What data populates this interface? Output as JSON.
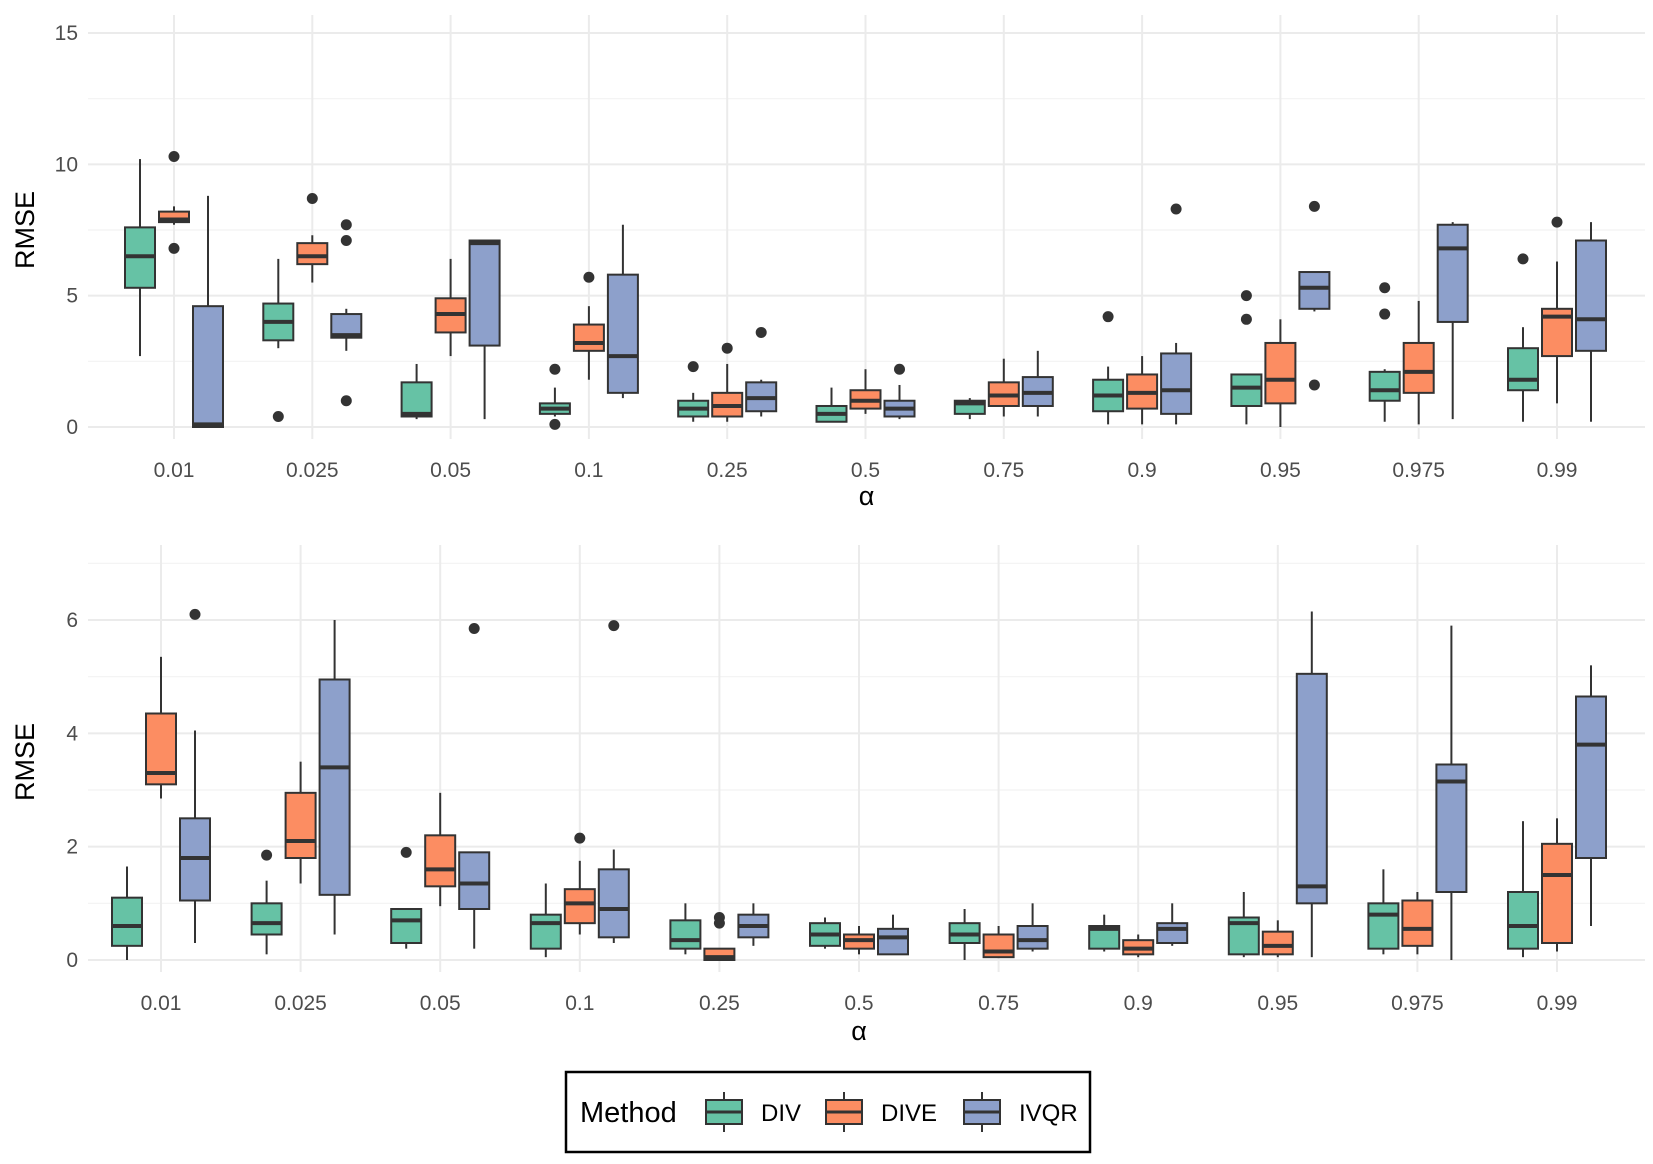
{
  "legend": {
    "title": "Method",
    "position": "bottom",
    "entries": [
      {
        "name": "DIV",
        "color": "#66C2A5"
      },
      {
        "name": "DIVE",
        "color": "#FC8D62"
      },
      {
        "name": "IVQR",
        "color": "#8DA0CB"
      }
    ]
  },
  "chart_data": [
    {
      "type": "boxplot",
      "xlabel": "α",
      "ylabel": "RMSE",
      "ylim": [
        0,
        15
      ],
      "yticks": [
        0,
        5,
        10,
        15
      ],
      "grid": true,
      "categories": [
        "0.01",
        "0.025",
        "0.05",
        "0.1",
        "0.25",
        "0.5",
        "0.75",
        "0.9",
        "0.95",
        "0.975",
        "0.99"
      ],
      "series": [
        {
          "name": "DIV",
          "boxes": [
            {
              "min": 2.7,
              "q1": 5.3,
              "median": 6.5,
              "q3": 7.6,
              "max": 10.2,
              "outliers": []
            },
            {
              "min": 3.0,
              "q1": 3.3,
              "median": 4.0,
              "q3": 4.7,
              "max": 6.4,
              "outliers": [
                0.4
              ]
            },
            {
              "min": 0.3,
              "q1": 0.4,
              "median": 0.5,
              "q3": 1.7,
              "max": 2.4,
              "outliers": []
            },
            {
              "min": 0.4,
              "q1": 0.5,
              "median": 0.7,
              "q3": 0.9,
              "max": 1.5,
              "outliers": [
                2.2,
                0.1
              ]
            },
            {
              "min": 0.2,
              "q1": 0.4,
              "median": 0.7,
              "q3": 1.0,
              "max": 1.3,
              "outliers": [
                2.3
              ]
            },
            {
              "min": 0.2,
              "q1": 0.2,
              "median": 0.5,
              "q3": 0.8,
              "max": 1.5,
              "outliers": []
            },
            {
              "min": 0.3,
              "q1": 0.5,
              "median": 0.9,
              "q3": 1.0,
              "max": 1.1,
              "outliers": []
            },
            {
              "min": 0.1,
              "q1": 0.6,
              "median": 1.2,
              "q3": 1.8,
              "max": 2.3,
              "outliers": [
                4.2
              ]
            },
            {
              "min": 0.1,
              "q1": 0.8,
              "median": 1.5,
              "q3": 2.0,
              "max": 2.0,
              "outliers": [
                5.0,
                4.1
              ]
            },
            {
              "min": 0.2,
              "q1": 1.0,
              "median": 1.4,
              "q3": 2.1,
              "max": 2.2,
              "outliers": [
                5.3,
                4.3
              ]
            },
            {
              "min": 0.2,
              "q1": 1.4,
              "median": 1.8,
              "q3": 3.0,
              "max": 3.8,
              "outliers": [
                6.4
              ]
            }
          ]
        },
        {
          "name": "DIVE",
          "boxes": [
            {
              "min": 7.7,
              "q1": 7.8,
              "median": 7.9,
              "q3": 8.2,
              "max": 8.4,
              "outliers": [
                10.3,
                6.8
              ]
            },
            {
              "min": 5.5,
              "q1": 6.2,
              "median": 6.5,
              "q3": 7.0,
              "max": 7.3,
              "outliers": [
                8.7
              ]
            },
            {
              "min": 2.7,
              "q1": 3.6,
              "median": 4.3,
              "q3": 4.9,
              "max": 6.4,
              "outliers": []
            },
            {
              "min": 1.8,
              "q1": 2.9,
              "median": 3.2,
              "q3": 3.9,
              "max": 4.6,
              "outliers": [
                5.7
              ]
            },
            {
              "min": 0.2,
              "q1": 0.4,
              "median": 0.8,
              "q3": 1.3,
              "max": 2.4,
              "outliers": [
                3.0
              ]
            },
            {
              "min": 0.5,
              "q1": 0.7,
              "median": 1.0,
              "q3": 1.4,
              "max": 2.2,
              "outliers": []
            },
            {
              "min": 0.4,
              "q1": 0.8,
              "median": 1.2,
              "q3": 1.7,
              "max": 2.6,
              "outliers": []
            },
            {
              "min": 0.1,
              "q1": 0.7,
              "median": 1.3,
              "q3": 2.0,
              "max": 2.7,
              "outliers": []
            },
            {
              "min": 0.0,
              "q1": 0.9,
              "median": 1.8,
              "q3": 3.2,
              "max": 4.1,
              "outliers": []
            },
            {
              "min": 0.1,
              "q1": 1.3,
              "median": 2.1,
              "q3": 3.2,
              "max": 4.8,
              "outliers": []
            },
            {
              "min": 0.9,
              "q1": 2.7,
              "median": 4.2,
              "q3": 4.5,
              "max": 6.3,
              "outliers": [
                7.8
              ]
            }
          ]
        },
        {
          "name": "IVQR",
          "boxes": [
            {
              "min": 0.0,
              "q1": 0.0,
              "median": 0.1,
              "q3": 4.6,
              "max": 8.8,
              "outliers": []
            },
            {
              "min": 2.9,
              "q1": 3.4,
              "median": 3.5,
              "q3": 4.3,
              "max": 4.5,
              "outliers": [
                7.7,
                7.1,
                1.0
              ]
            },
            {
              "min": 0.3,
              "q1": 3.1,
              "median": 7.0,
              "q3": 7.1,
              "max": 7.1,
              "outliers": []
            },
            {
              "min": 1.1,
              "q1": 1.3,
              "median": 2.7,
              "q3": 5.8,
              "max": 7.7,
              "outliers": []
            },
            {
              "min": 0.4,
              "q1": 0.6,
              "median": 1.1,
              "q3": 1.7,
              "max": 1.8,
              "outliers": [
                3.6
              ]
            },
            {
              "min": 0.3,
              "q1": 0.4,
              "median": 0.7,
              "q3": 1.0,
              "max": 1.6,
              "outliers": [
                2.2
              ]
            },
            {
              "min": 0.4,
              "q1": 0.8,
              "median": 1.3,
              "q3": 1.9,
              "max": 2.9,
              "outliers": []
            },
            {
              "min": 0.1,
              "q1": 0.5,
              "median": 1.4,
              "q3": 2.8,
              "max": 3.2,
              "outliers": [
                8.3
              ]
            },
            {
              "min": 4.4,
              "q1": 4.5,
              "median": 5.3,
              "q3": 5.9,
              "max": 5.9,
              "outliers": [
                8.4,
                1.6
              ]
            },
            {
              "min": 0.3,
              "q1": 4.0,
              "median": 6.8,
              "q3": 7.7,
              "max": 7.8,
              "outliers": []
            },
            {
              "min": 0.2,
              "q1": 2.9,
              "median": 4.1,
              "q3": 7.1,
              "max": 7.8,
              "outliers": []
            }
          ]
        }
      ]
    },
    {
      "type": "boxplot",
      "xlabel": "α",
      "ylabel": "RMSE",
      "ylim": [
        0,
        7
      ],
      "yticks": [
        0,
        2,
        4,
        6
      ],
      "grid": true,
      "categories": [
        "0.01",
        "0.025",
        "0.05",
        "0.1",
        "0.25",
        "0.5",
        "0.75",
        "0.9",
        "0.95",
        "0.975",
        "0.99"
      ],
      "series": [
        {
          "name": "DIV",
          "boxes": [
            {
              "min": 0.0,
              "q1": 0.25,
              "median": 0.6,
              "q3": 1.1,
              "max": 1.65,
              "outliers": []
            },
            {
              "min": 0.1,
              "q1": 0.45,
              "median": 0.65,
              "q3": 1.0,
              "max": 1.4,
              "outliers": [
                1.85
              ]
            },
            {
              "min": 0.2,
              "q1": 0.3,
              "median": 0.7,
              "q3": 0.9,
              "max": 0.9,
              "outliers": [
                1.9
              ]
            },
            {
              "min": 0.05,
              "q1": 0.2,
              "median": 0.65,
              "q3": 0.8,
              "max": 1.35,
              "outliers": []
            },
            {
              "min": 0.1,
              "q1": 0.2,
              "median": 0.35,
              "q3": 0.7,
              "max": 1.0,
              "outliers": []
            },
            {
              "min": 0.2,
              "q1": 0.25,
              "median": 0.45,
              "q3": 0.65,
              "max": 0.75,
              "outliers": []
            },
            {
              "min": 0.0,
              "q1": 0.3,
              "median": 0.45,
              "q3": 0.65,
              "max": 0.9,
              "outliers": []
            },
            {
              "min": 0.15,
              "q1": 0.2,
              "median": 0.55,
              "q3": 0.6,
              "max": 0.8,
              "outliers": []
            },
            {
              "min": 0.05,
              "q1": 0.1,
              "median": 0.65,
              "q3": 0.75,
              "max": 1.2,
              "outliers": []
            },
            {
              "min": 0.1,
              "q1": 0.2,
              "median": 0.8,
              "q3": 1.0,
              "max": 1.6,
              "outliers": []
            },
            {
              "min": 0.05,
              "q1": 0.2,
              "median": 0.6,
              "q3": 1.2,
              "max": 2.45,
              "outliers": []
            }
          ]
        },
        {
          "name": "DIVE",
          "boxes": [
            {
              "min": 2.85,
              "q1": 3.1,
              "median": 3.3,
              "q3": 4.35,
              "max": 5.35,
              "outliers": []
            },
            {
              "min": 1.35,
              "q1": 1.8,
              "median": 2.1,
              "q3": 2.95,
              "max": 3.5,
              "outliers": []
            },
            {
              "min": 0.95,
              "q1": 1.3,
              "median": 1.6,
              "q3": 2.2,
              "max": 2.95,
              "outliers": []
            },
            {
              "min": 0.45,
              "q1": 0.65,
              "median": 1.0,
              "q3": 1.25,
              "max": 1.75,
              "outliers": [
                2.15
              ]
            },
            {
              "min": 0.0,
              "q1": 0.0,
              "median": 0.05,
              "q3": 0.2,
              "max": 0.2,
              "outliers": [
                0.75,
                0.65
              ]
            },
            {
              "min": 0.1,
              "q1": 0.2,
              "median": 0.35,
              "q3": 0.45,
              "max": 0.6,
              "outliers": []
            },
            {
              "min": 0.05,
              "q1": 0.05,
              "median": 0.15,
              "q3": 0.45,
              "max": 0.6,
              "outliers": []
            },
            {
              "min": 0.05,
              "q1": 0.1,
              "median": 0.2,
              "q3": 0.35,
              "max": 0.45,
              "outliers": []
            },
            {
              "min": 0.05,
              "q1": 0.1,
              "median": 0.25,
              "q3": 0.5,
              "max": 0.7,
              "outliers": []
            },
            {
              "min": 0.1,
              "q1": 0.25,
              "median": 0.55,
              "q3": 1.05,
              "max": 1.2,
              "outliers": []
            },
            {
              "min": 0.15,
              "q1": 0.3,
              "median": 1.5,
              "q3": 2.05,
              "max": 2.5,
              "outliers": []
            }
          ]
        },
        {
          "name": "IVQR",
          "boxes": [
            {
              "min": 0.3,
              "q1": 1.05,
              "median": 1.8,
              "q3": 2.5,
              "max": 4.05,
              "outliers": [
                6.1
              ]
            },
            {
              "min": 0.45,
              "q1": 1.15,
              "median": 3.4,
              "q3": 4.95,
              "max": 6.0,
              "outliers": []
            },
            {
              "min": 0.2,
              "q1": 0.9,
              "median": 1.35,
              "q3": 1.9,
              "max": 1.9,
              "outliers": [
                5.85
              ]
            },
            {
              "min": 0.3,
              "q1": 0.4,
              "median": 0.9,
              "q3": 1.6,
              "max": 1.95,
              "outliers": [
                5.9
              ]
            },
            {
              "min": 0.25,
              "q1": 0.4,
              "median": 0.6,
              "q3": 0.8,
              "max": 1.0,
              "outliers": []
            },
            {
              "min": 0.1,
              "q1": 0.1,
              "median": 0.4,
              "q3": 0.55,
              "max": 0.8,
              "outliers": []
            },
            {
              "min": 0.15,
              "q1": 0.2,
              "median": 0.35,
              "q3": 0.6,
              "max": 1.0,
              "outliers": []
            },
            {
              "min": 0.25,
              "q1": 0.3,
              "median": 0.55,
              "q3": 0.65,
              "max": 1.0,
              "outliers": []
            },
            {
              "min": 0.05,
              "q1": 1.0,
              "median": 1.3,
              "q3": 5.05,
              "max": 6.15,
              "outliers": []
            },
            {
              "min": 0.0,
              "q1": 1.2,
              "median": 3.15,
              "q3": 3.45,
              "max": 5.9,
              "outliers": []
            },
            {
              "min": 0.6,
              "q1": 1.8,
              "median": 3.8,
              "q3": 4.65,
              "max": 5.2,
              "outliers": []
            }
          ]
        }
      ]
    }
  ]
}
